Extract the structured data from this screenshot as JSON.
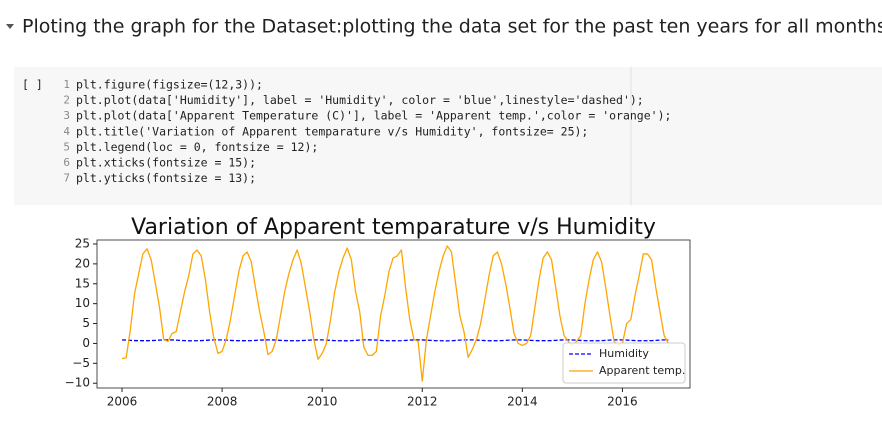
{
  "notebook": {
    "heading": "Ploting the graph for the Dataset:plotting the data set for the past ten years for all months",
    "cell_prompt": "[ ]",
    "line_numbers": [
      1,
      2,
      3,
      4,
      5,
      6,
      7
    ],
    "code_lines": [
      "plt.figure(figsize=(12,3));",
      "plt.plot(data['Humidity'], label = 'Humidity', color = 'blue',linestyle='dashed');",
      "plt.plot(data['Apparent Temperature (C)'], label = 'Apparent temp.',color = 'orange');",
      "plt.title('Variation of Apparent temparature v/s Humidity', fontsize= 25);",
      "plt.legend(loc = 0, fontsize = 12);",
      "plt.xticks(fontsize = 15);",
      "plt.yticks(fontsize = 13);"
    ]
  },
  "chart_data": {
    "type": "line",
    "title": "Variation of Apparent temparature v/s Humidity",
    "x": [
      2006.0,
      2006.083,
      2006.167,
      2006.25,
      2006.333,
      2006.417,
      2006.5,
      2006.583,
      2006.667,
      2006.75,
      2006.833,
      2006.917,
      2007.0,
      2007.083,
      2007.167,
      2007.25,
      2007.333,
      2007.417,
      2007.5,
      2007.583,
      2007.667,
      2007.75,
      2007.833,
      2007.917,
      2008.0,
      2008.083,
      2008.167,
      2008.25,
      2008.333,
      2008.417,
      2008.5,
      2008.583,
      2008.667,
      2008.75,
      2008.833,
      2008.917,
      2009.0,
      2009.083,
      2009.167,
      2009.25,
      2009.333,
      2009.417,
      2009.5,
      2009.583,
      2009.667,
      2009.75,
      2009.833,
      2009.917,
      2010.0,
      2010.083,
      2010.167,
      2010.25,
      2010.333,
      2010.417,
      2010.5,
      2010.583,
      2010.667,
      2010.75,
      2010.833,
      2010.917,
      2011.0,
      2011.083,
      2011.167,
      2011.25,
      2011.333,
      2011.417,
      2011.5,
      2011.583,
      2011.667,
      2011.75,
      2011.833,
      2011.917,
      2012.0,
      2012.083,
      2012.167,
      2012.25,
      2012.333,
      2012.417,
      2012.5,
      2012.583,
      2012.667,
      2012.75,
      2012.833,
      2012.917,
      2013.0,
      2013.083,
      2013.167,
      2013.25,
      2013.333,
      2013.417,
      2013.5,
      2013.583,
      2013.667,
      2013.75,
      2013.833,
      2013.917,
      2014.0,
      2014.083,
      2014.167,
      2014.25,
      2014.333,
      2014.417,
      2014.5,
      2014.583,
      2014.667,
      2014.75,
      2014.833,
      2014.917,
      2015.0,
      2015.083,
      2015.167,
      2015.25,
      2015.333,
      2015.417,
      2015.5,
      2015.583,
      2015.667,
      2015.75,
      2015.833,
      2015.917,
      2016.0,
      2016.083,
      2016.167,
      2016.25,
      2016.333,
      2016.417,
      2016.5,
      2016.583,
      2016.667,
      2016.75,
      2016.833,
      2016.917
    ],
    "series": [
      {
        "name": "Humidity",
        "color": "blue",
        "dashed": true,
        "values": [
          0.89,
          0.85,
          0.78,
          0.72,
          0.68,
          0.7,
          0.69,
          0.72,
          0.77,
          0.84,
          0.88,
          0.9,
          0.88,
          0.84,
          0.75,
          0.7,
          0.66,
          0.68,
          0.67,
          0.7,
          0.78,
          0.85,
          0.89,
          0.9,
          0.87,
          0.83,
          0.76,
          0.71,
          0.69,
          0.7,
          0.68,
          0.71,
          0.76,
          0.83,
          0.88,
          0.89,
          0.88,
          0.85,
          0.77,
          0.72,
          0.68,
          0.69,
          0.68,
          0.72,
          0.77,
          0.84,
          0.88,
          0.9,
          0.89,
          0.84,
          0.78,
          0.71,
          0.67,
          0.7,
          0.66,
          0.7,
          0.77,
          0.85,
          0.9,
          0.91,
          0.88,
          0.85,
          0.76,
          0.7,
          0.67,
          0.69,
          0.68,
          0.7,
          0.76,
          0.84,
          0.88,
          0.89,
          0.88,
          0.84,
          0.77,
          0.71,
          0.67,
          0.68,
          0.65,
          0.68,
          0.76,
          0.84,
          0.88,
          0.9,
          0.89,
          0.85,
          0.78,
          0.72,
          0.68,
          0.7,
          0.68,
          0.71,
          0.77,
          0.84,
          0.88,
          0.89,
          0.88,
          0.83,
          0.77,
          0.72,
          0.69,
          0.7,
          0.69,
          0.72,
          0.78,
          0.85,
          0.89,
          0.9,
          0.87,
          0.84,
          0.76,
          0.71,
          0.67,
          0.69,
          0.67,
          0.71,
          0.77,
          0.84,
          0.88,
          0.89,
          0.88,
          0.85,
          0.77,
          0.72,
          0.68,
          0.7,
          0.68,
          0.71,
          0.77,
          0.85,
          0.89,
          0.9
        ]
      },
      {
        "name": "Apparent temp.",
        "color": "orange",
        "dashed": false,
        "values": [
          -3.8,
          -3.6,
          3.5,
          12.5,
          17.5,
          22.5,
          23.8,
          21,
          15,
          9,
          1,
          0.5,
          2.5,
          3,
          8,
          13,
          17,
          22.5,
          23.5,
          22,
          16,
          8,
          1.5,
          -2.5,
          -2,
          1,
          6,
          12,
          18,
          22,
          23,
          20.5,
          14,
          8,
          3,
          -2.8,
          -2,
          1,
          7,
          13,
          17.5,
          21,
          23.5,
          20,
          14,
          8,
          1,
          -4,
          -2.5,
          0,
          6,
          13,
          18,
          21.5,
          24,
          21,
          13,
          8,
          -1,
          -3,
          -3,
          -2,
          7,
          12,
          18,
          21.5,
          22,
          23.5,
          14,
          6,
          1,
          0.5,
          -9.5,
          1,
          7,
          13,
          18,
          22,
          24.5,
          23,
          15,
          7,
          3,
          -3.5,
          -1.5,
          1,
          5,
          11,
          17,
          22,
          23,
          20,
          15,
          9,
          2.5,
          0,
          -0.5,
          0,
          2,
          9,
          16,
          21.5,
          23,
          21,
          14,
          7,
          2,
          0.5,
          -0.5,
          0.5,
          2,
          10,
          16,
          21,
          23,
          20.5,
          14,
          7,
          0.5,
          -0.5,
          0,
          5,
          6,
          12,
          17,
          22.5,
          22.5,
          21,
          14,
          8,
          2,
          0
        ]
      }
    ],
    "xlim": [
      2005.5,
      2017.35
    ],
    "ylim": [
      -11.2,
      26
    ],
    "xticks": [
      2006,
      2008,
      2010,
      2012,
      2014,
      2016
    ],
    "yticks": [
      {
        "value": -10,
        "label": "−10"
      },
      {
        "value": -5,
        "label": "−5"
      },
      0,
      5,
      10,
      15,
      20,
      25
    ],
    "legend": "lower right"
  }
}
